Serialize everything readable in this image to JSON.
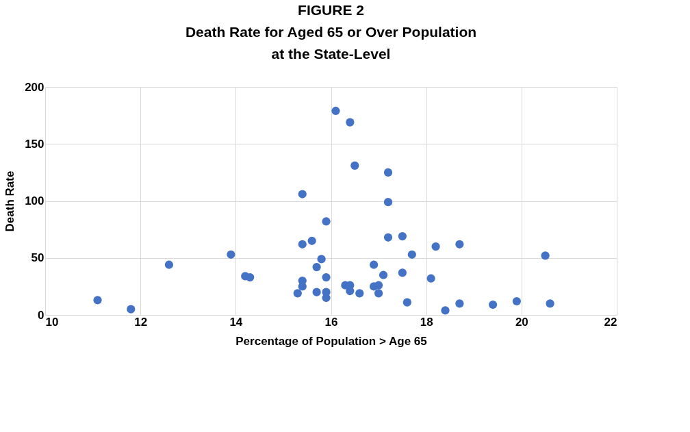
{
  "chart_data": {
    "type": "scatter",
    "title": "FIGURE 2",
    "subtitle": "Death Rate for Aged 65 or Over Population at the State-Level",
    "xlabel": "Percentage of Population > Age 65",
    "ylabel": "Death Rate",
    "x": [
      11.1,
      11.8,
      12.6,
      13.9,
      14.2,
      14.3,
      15.3,
      15.4,
      15.4,
      15.4,
      15.4,
      15.6,
      15.7,
      15.7,
      15.8,
      15.9,
      15.9,
      15.9,
      15.9,
      16.1,
      16.3,
      16.4,
      16.4,
      16.4,
      16.5,
      16.6,
      16.9,
      16.9,
      17.0,
      17.0,
      17.1,
      17.2,
      17.2,
      17.2,
      17.5,
      17.5,
      17.6,
      17.7,
      18.1,
      18.2,
      18.4,
      18.7,
      18.7,
      19.4,
      19.9,
      20.5,
      20.6
    ],
    "series": [
      {
        "color": "#4472c4",
        "values": [
          13,
          5,
          44,
          53,
          34,
          33,
          19,
          25,
          30,
          62,
          106,
          65,
          20,
          42,
          49,
          82,
          33,
          20,
          15,
          179,
          26,
          169,
          26,
          21,
          131,
          19,
          44,
          25,
          26,
          19,
          35,
          125,
          99,
          68,
          69,
          37,
          11,
          53,
          32,
          60,
          4,
          62,
          10,
          9,
          12,
          52,
          10
        ]
      }
    ],
    "xlim": [
      10,
      22
    ],
    "xticks": [
      10,
      12,
      14,
      16,
      18,
      20,
      22
    ],
    "ylim": [
      0,
      200
    ],
    "yticks": [
      0,
      50,
      100,
      150,
      200
    ],
    "grid": true,
    "marker": "circle",
    "legend": false
  }
}
